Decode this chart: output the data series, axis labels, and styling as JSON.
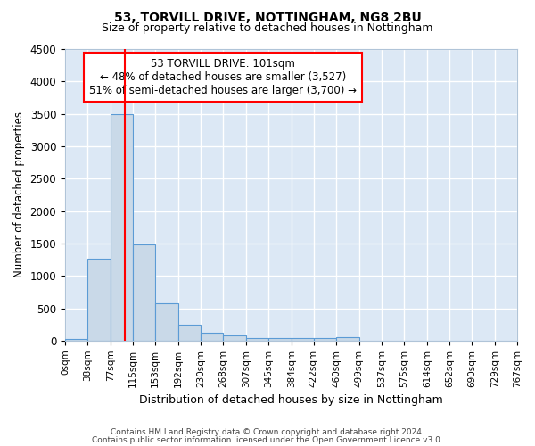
{
  "title1": "53, TORVILL DRIVE, NOTTINGHAM, NG8 2BU",
  "title2": "Size of property relative to detached houses in Nottingham",
  "xlabel": "Distribution of detached houses by size in Nottingham",
  "ylabel": "Number of detached properties",
  "footer1": "Contains HM Land Registry data © Crown copyright and database right 2024.",
  "footer2": "Contains public sector information licensed under the Open Government Licence v3.0.",
  "bin_labels": [
    "0sqm",
    "38sqm",
    "77sqm",
    "115sqm",
    "153sqm",
    "192sqm",
    "230sqm",
    "268sqm",
    "307sqm",
    "345sqm",
    "384sqm",
    "422sqm",
    "460sqm",
    "499sqm",
    "537sqm",
    "575sqm",
    "614sqm",
    "652sqm",
    "690sqm",
    "729sqm",
    "767sqm"
  ],
  "bin_edges": [
    0,
    38,
    77,
    115,
    153,
    192,
    230,
    268,
    307,
    345,
    384,
    422,
    460,
    499,
    537,
    575,
    614,
    652,
    690,
    729,
    767
  ],
  "bar_heights": [
    30,
    1270,
    3500,
    1480,
    570,
    240,
    120,
    75,
    40,
    35,
    35,
    35,
    50,
    0,
    0,
    0,
    0,
    0,
    0,
    0
  ],
  "bar_color": "#c9d9e8",
  "bar_edge_color": "#5b9bd5",
  "red_line_x": 101,
  "annotation_box_text1": "53 TORVILL DRIVE: 101sqm",
  "annotation_box_text2": "← 48% of detached houses are smaller (3,527)",
  "annotation_box_text3": "51% of semi-detached houses are larger (3,700) →",
  "annotation_box_color": "white",
  "annotation_box_edge_color": "red",
  "ylim": [
    0,
    4500
  ],
  "yticks": [
    0,
    500,
    1000,
    1500,
    2000,
    2500,
    3000,
    3500,
    4000,
    4500
  ],
  "bg_color": "#dce8f5",
  "plot_bg_color": "#ffffff",
  "grid_color": "#c8d8eb"
}
